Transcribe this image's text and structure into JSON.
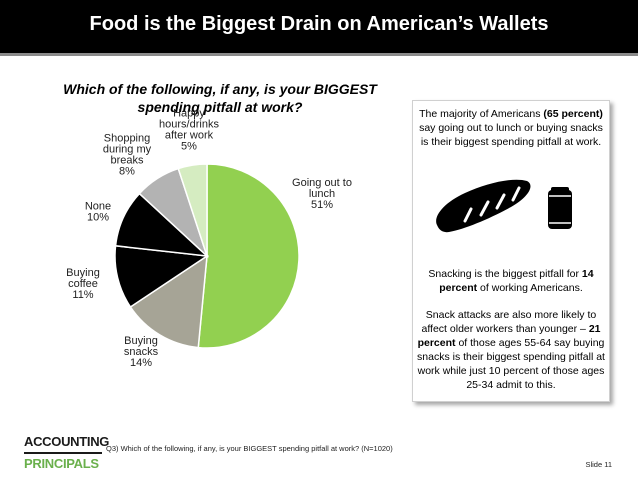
{
  "title": "Food is the Biggest Drain on American’s Wallets",
  "question": "Which of the following, if any, is your BIGGEST spending pitfall at work?",
  "chart_data": {
    "type": "pie",
    "title": "Which of the following, if any, is your BIGGEST spending pitfall at work?",
    "categories": [
      "Going out to lunch",
      "Buying snacks",
      "Buying coffee",
      "None",
      "Shopping during my breaks",
      "Happy hours/drinks after work"
    ],
    "values": [
      51,
      14,
      11,
      10,
      8,
      5
    ],
    "unit": "%",
    "colors": [
      "#92d050",
      "#a6a496",
      "#000000",
      "#000000",
      "#b3b3b3",
      "#d5ecc1"
    ],
    "labels": [
      [
        "Going out to",
        "lunch",
        "51%"
      ],
      [
        "Buying",
        "snacks",
        "14%"
      ],
      [
        "Buying",
        "coffee",
        "11%"
      ],
      [
        "None",
        "10%"
      ],
      [
        "Shopping",
        "during my",
        "breaks",
        "8%"
      ],
      [
        "Happy",
        "hours/drinks",
        "after work",
        "5%"
      ]
    ]
  },
  "callouts": {
    "c1_text1": "The majority of Americans ",
    "c1_bold": "(65 percent)",
    "c1_text2": " say going out to lunch or buying snacks is their biggest spending pitfall at work.",
    "c2_text1": "Snacking is the biggest pitfall for ",
    "c2_bold": "14 percent",
    "c2_text2": " of working Americans.",
    "c3_text1": "Snack attacks are also more likely to affect older workers than younger – ",
    "c3_bold": "21 percent",
    "c3_text2": " of those ages 55-64 say buying snacks is their biggest spending pitfall at work while just 10 percent of those ages 25-34 admit to this."
  },
  "icons": {
    "sandwich": "sandwich-icon",
    "can": "soda-can-icon"
  },
  "logo": {
    "line1": "ACCOUNTING",
    "line2": "PRINCIPALS"
  },
  "footnote": "Q3) Which of the following, if any, is your BIGGEST spending pitfall at work? (N=1020)",
  "slide_number": "Slide 11"
}
